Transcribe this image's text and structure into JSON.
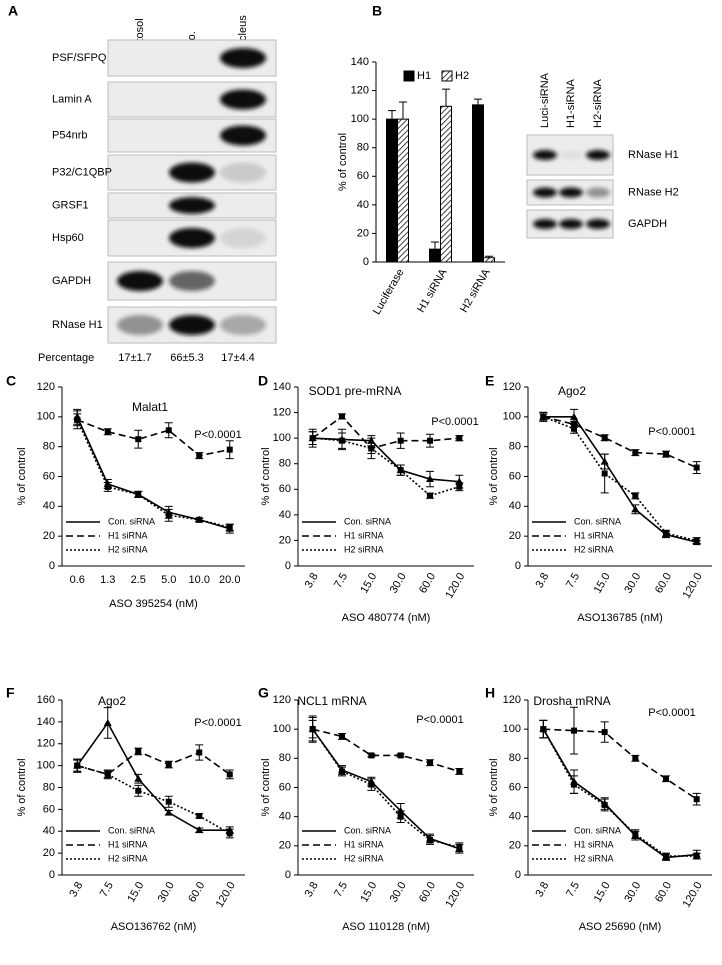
{
  "blot_a": {
    "panel": "A",
    "columns": [
      "Cytosol",
      "Mito.",
      "Nucleus"
    ],
    "rows": [
      "PSF/SFPQ",
      "Lamin A",
      "P54nrb",
      "P32/C1QBP",
      "GRSF1",
      "Hsp60",
      "GAPDH",
      "RNase H1"
    ],
    "footer_label": "Percentage",
    "percentages": [
      "17±1.7",
      "66±5.3",
      "17±4.4"
    ]
  },
  "blot_b": {
    "columns": [
      "Luci-siRNA",
      "H1-siRNA",
      "H2-siRNA"
    ],
    "rows": [
      "RNase H1",
      "RNase H2",
      "GAPDH"
    ]
  },
  "chart_data": [
    {
      "type": "bar",
      "panel": "B",
      "ylabel": "% of control",
      "categories": [
        "Luciferase",
        "H1 siRNA",
        "H2 siRNA"
      ],
      "ylim": [
        0,
        140
      ],
      "yticks": [
        0,
        20,
        40,
        60,
        80,
        100,
        120,
        140
      ],
      "legend": "upper left",
      "series": [
        {
          "name": "H1",
          "color": "#000000",
          "fill": "solid",
          "values": [
            100,
            9,
            110
          ],
          "errors": [
            6,
            5,
            4
          ]
        },
        {
          "name": "H2",
          "color": "#000000",
          "fill": "hatched",
          "values": [
            100,
            109,
            3
          ],
          "errors": [
            12,
            12,
            1
          ]
        }
      ]
    },
    {
      "type": "line",
      "panel": "C",
      "title": "Malat1",
      "ylabel": "% of control",
      "xlabel": "ASO 395254 (nM)",
      "annotation": "P<0.0001",
      "categories": [
        "0.6",
        "1.3",
        "2.5",
        "5.0",
        "10.0",
        "20.0"
      ],
      "ylim": [
        0,
        120
      ],
      "yticks": [
        0,
        20,
        40,
        60,
        80,
        100,
        120
      ],
      "legend": "lower left",
      "series": [
        {
          "name": "Con. siRNA",
          "color": "#000000",
          "style": "solid",
          "values": [
            100,
            55,
            48,
            36,
            31,
            25
          ],
          "errors": [
            5,
            3,
            2,
            4,
            1,
            3
          ]
        },
        {
          "name": "H1 siRNA",
          "color": "#000000",
          "style": "dashed",
          "values": [
            98,
            90,
            85,
            91,
            74,
            78
          ],
          "errors": [
            6,
            2,
            6,
            5,
            2,
            6
          ]
        },
        {
          "name": "H2 siRNA",
          "color": "#000000",
          "style": "dotted",
          "values": [
            98,
            53,
            48,
            34,
            31,
            26
          ],
          "errors": [
            4,
            3,
            2,
            4,
            1,
            2
          ]
        }
      ]
    },
    {
      "type": "line",
      "panel": "D",
      "title": "SOD1 pre-mRNA",
      "ylabel": "% of control",
      "xlabel": "ASO 480774 (nM)",
      "annotation": "P<0.0001",
      "categories": [
        "3.8",
        "7.5",
        "15.0",
        "30.0",
        "60.0",
        "120.0"
      ],
      "ylim": [
        0,
        140
      ],
      "yticks": [
        0,
        20,
        40,
        60,
        80,
        100,
        120,
        140
      ],
      "legend": "lower left",
      "series": [
        {
          "name": "Con. siRNA",
          "color": "#000000",
          "style": "solid",
          "values": [
            100,
            99,
            98,
            75,
            68,
            66
          ],
          "errors": [
            7,
            8,
            4,
            4,
            6,
            5
          ]
        },
        {
          "name": "H1 siRNA",
          "color": "#000000",
          "style": "dashed",
          "values": [
            100,
            117,
            92,
            98,
            98,
            100
          ],
          "errors": [
            5,
            2,
            4,
            6,
            5,
            2
          ]
        },
        {
          "name": "H2 siRNA",
          "color": "#000000",
          "style": "dotted",
          "values": [
            100,
            98,
            92,
            75,
            55,
            62
          ],
          "errors": [
            5,
            6,
            8,
            4,
            2,
            3
          ]
        }
      ]
    },
    {
      "type": "line",
      "panel": "E",
      "title": "Ago2",
      "ylabel": "% of control",
      "xlabel": "ASO136785 (nM)",
      "annotation": "P<0.0001",
      "categories": [
        "3.8",
        "7.5",
        "15.0",
        "30.0",
        "60.0",
        "120.0"
      ],
      "ylim": [
        0,
        120
      ],
      "yticks": [
        0,
        20,
        40,
        60,
        80,
        100,
        120
      ],
      "legend": "lower left",
      "series": [
        {
          "name": "Con. siRNA",
          "color": "#000000",
          "style": "solid",
          "values": [
            100,
            100,
            70,
            38,
            21,
            16
          ],
          "errors": [
            3,
            5,
            5,
            3,
            2,
            1
          ]
        },
        {
          "name": "H1 siRNA",
          "color": "#000000",
          "style": "dashed",
          "values": [
            100,
            95,
            86,
            76,
            75,
            66
          ],
          "errors": [
            2,
            2,
            2,
            2,
            2,
            4
          ]
        },
        {
          "name": "H2 siRNA",
          "color": "#000000",
          "style": "dotted",
          "values": [
            100,
            92,
            62,
            47,
            22,
            17
          ],
          "errors": [
            3,
            3,
            13,
            2,
            2,
            2
          ]
        }
      ]
    },
    {
      "type": "line",
      "panel": "F",
      "title": "Ago2",
      "ylabel": "% of control",
      "xlabel": "ASO136762 (nM)",
      "annotation": "P<0.0001",
      "categories": [
        "3.8",
        "7.5",
        "15.0",
        "30.0",
        "60.0",
        "120.0"
      ],
      "ylim": [
        0,
        160
      ],
      "yticks": [
        0,
        20,
        40,
        60,
        80,
        100,
        120,
        140,
        160
      ],
      "legend": "lower left",
      "series": [
        {
          "name": "Con. siRNA",
          "color": "#000000",
          "style": "solid",
          "values": [
            100,
            139,
            88,
            57,
            41,
            41
          ],
          "errors": [
            6,
            14,
            4,
            2,
            2,
            3
          ]
        },
        {
          "name": "H1 siRNA",
          "color": "#000000",
          "style": "dashed",
          "values": [
            100,
            92,
            113,
            101,
            112,
            92
          ],
          "errors": [
            5,
            3,
            3,
            3,
            7,
            4
          ]
        },
        {
          "name": "H2 siRNA",
          "color": "#000000",
          "style": "dotted",
          "values": [
            100,
            92,
            77,
            67,
            54,
            38
          ],
          "errors": [
            6,
            4,
            5,
            5,
            2,
            4
          ]
        }
      ]
    },
    {
      "type": "line",
      "panel": "G",
      "title": "NCL1 mRNA",
      "ylabel": "% of control",
      "xlabel": "ASO 110128 (nM)",
      "annotation": "P<0.0001",
      "categories": [
        "3.8",
        "7.5",
        "15.0",
        "30.0",
        "60.0",
        "120.0"
      ],
      "ylim": [
        0,
        120
      ],
      "yticks": [
        0,
        20,
        40,
        60,
        80,
        100,
        120
      ],
      "legend": "lower left",
      "series": [
        {
          "name": "Con. siRNA",
          "color": "#000000",
          "style": "solid",
          "values": [
            100,
            72,
            64,
            44,
            25,
            18
          ],
          "errors": [
            8,
            3,
            3,
            5,
            3,
            3
          ]
        },
        {
          "name": "H1 siRNA",
          "color": "#000000",
          "style": "dashed",
          "values": [
            100,
            95,
            82,
            82,
            77,
            71
          ],
          "errors": [
            9,
            2,
            1,
            1,
            2,
            2
          ]
        },
        {
          "name": "H2 siRNA",
          "color": "#000000",
          "style": "dotted",
          "values": [
            100,
            71,
            62,
            40,
            24,
            19
          ],
          "errors": [
            6,
            3,
            4,
            4,
            3,
            3
          ]
        }
      ]
    },
    {
      "type": "line",
      "panel": "H",
      "title": "Drosha mRNA",
      "ylabel": "% of control",
      "xlabel": "ASO 25690 (nM)",
      "annotation": "P<0.0001",
      "categories": [
        "3.8",
        "7.5",
        "15.0",
        "30.0",
        "60.0",
        "120.0"
      ],
      "ylim": [
        0,
        120
      ],
      "yticks": [
        0,
        20,
        40,
        60,
        80,
        100,
        120
      ],
      "legend": "lower left",
      "series": [
        {
          "name": "Con. siRNA",
          "color": "#000000",
          "style": "solid",
          "values": [
            100,
            64,
            49,
            27,
            12,
            14
          ],
          "errors": [
            6,
            8,
            4,
            3,
            2,
            3
          ]
        },
        {
          "name": "H1 siRNA",
          "color": "#000000",
          "style": "dashed",
          "values": [
            100,
            99,
            98,
            80,
            66,
            52
          ],
          "errors": [
            6,
            16,
            7,
            2,
            2,
            4
          ]
        },
        {
          "name": "H2 siRNA",
          "color": "#000000",
          "style": "dotted",
          "values": [
            100,
            62,
            48,
            28,
            13,
            13
          ],
          "errors": [
            6,
            6,
            4,
            3,
            2,
            2
          ]
        }
      ]
    }
  ]
}
